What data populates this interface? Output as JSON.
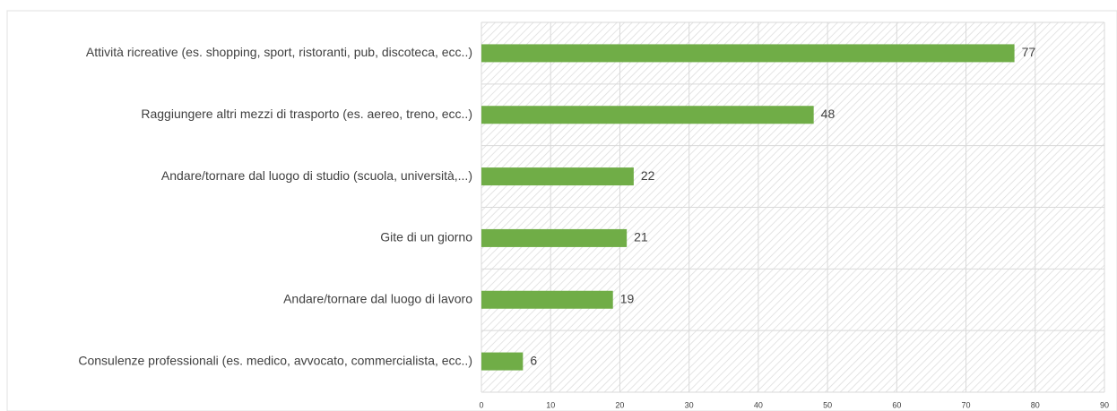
{
  "chart_data": {
    "type": "bar",
    "orientation": "horizontal",
    "categories": [
      "Attività ricreative (es. shopping, sport, ristoranti, pub, discoteca, ecc..)",
      "Raggiungere altri mezzi di trasporto (es. aereo, treno, ecc..)",
      "Andare/tornare dal luogo di studio (scuola, università,...)",
      "Gite di un giorno",
      "Andare/tornare dal luogo di lavoro",
      "Consulenze professionali (es. medico, avvocato, commercialista, ecc..)"
    ],
    "values": [
      77,
      48,
      22,
      21,
      19,
      6
    ],
    "color": "#70ad47",
    "xlim": [
      0,
      90
    ],
    "xticks": [
      0,
      10,
      20,
      30,
      40,
      50,
      60,
      70,
      80,
      90
    ],
    "grid": true
  }
}
